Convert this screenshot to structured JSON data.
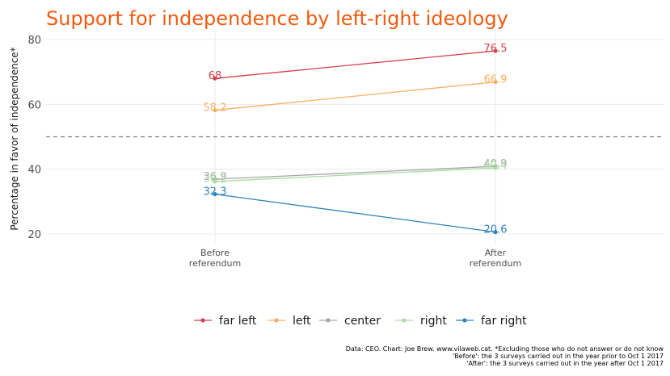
{
  "chart_data": {
    "type": "line",
    "title": "Support for independence by left-right ideology",
    "title_color": "#f15a0f",
    "ylabel": "Percentage in favor of independence*",
    "xlabel": "",
    "categories": [
      "Before\nreferendum",
      "After\nreferendum"
    ],
    "y_ticks": [
      20,
      40,
      60,
      80
    ],
    "ylim": [
      17,
      83
    ],
    "reference_line": {
      "y": 50,
      "style": "dashed",
      "color": "#808080"
    },
    "grid": true,
    "legend_position": "bottom",
    "series": [
      {
        "name": "far left",
        "values": [
          68,
          76.5
        ],
        "labels": [
          "68",
          "76.5"
        ],
        "color": "#d7414e"
      },
      {
        "name": "left",
        "values": [
          58.2,
          66.9
        ],
        "labels": [
          "58.2",
          "66.9"
        ],
        "color": "#fdad61"
      },
      {
        "name": "center",
        "values": [
          36.9,
          40.9
        ],
        "labels": [
          "36.9",
          "40.9"
        ],
        "color": "#a6a6a6"
      },
      {
        "name": "right",
        "values": [
          36.2,
          40.4
        ],
        "labels": [
          "36.2",
          "40.4"
        ],
        "color": "#abdda4"
      },
      {
        "name": "far right",
        "values": [
          32.3,
          20.6
        ],
        "labels": [
          "32.3",
          "20.6"
        ],
        "color": "#2b83ba"
      }
    ],
    "caption": [
      "Data: CEO. Chart: Joe Brew. www.vilaweb.cat. *Excluding those who do not answer or do not know",
      "'Before': the 3 surveys carried out in the year prior to Oct 1 2017",
      "'After': the 3 surveys carried out in the year after Oct 1 2017"
    ]
  }
}
